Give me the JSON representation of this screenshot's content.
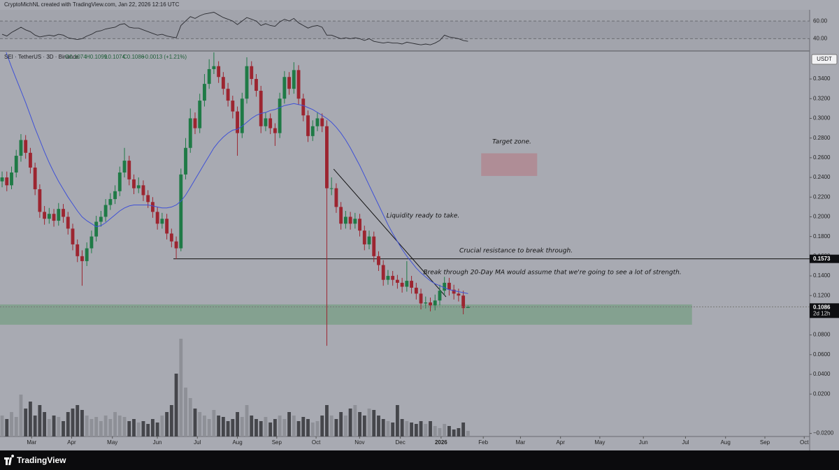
{
  "chart_data": {
    "type": "candlestick",
    "header": "CryptoMichNL created with TradingView.com, Jan 22, 2026 12:16 UTC",
    "legend": {
      "symbol": "SEI · TetherUS · 3D · Binance",
      "open": "O0.1074",
      "high": "H0.1099",
      "low": "L0.1074",
      "close": "C0.1086",
      "change": "+0.0013 (+1.21%)"
    },
    "currency": "USDT",
    "footer": "TradingView",
    "colors": {
      "up": "#1f7a46",
      "down": "#9c2530",
      "ma": "#3f51d6",
      "volume_up": "#8e9097",
      "volume_down": "#45464b",
      "rsi": "#2a2b30"
    },
    "candles": [
      [
        0.236,
        0.246,
        0.23,
        0.24
      ],
      [
        0.24,
        0.246,
        0.226,
        0.232
      ],
      [
        0.232,
        0.251,
        0.228,
        0.245
      ],
      [
        0.245,
        0.268,
        0.24,
        0.262
      ],
      [
        0.262,
        0.284,
        0.256,
        0.278
      ],
      [
        0.278,
        0.283,
        0.259,
        0.265
      ],
      [
        0.265,
        0.27,
        0.244,
        0.25
      ],
      [
        0.25,
        0.255,
        0.222,
        0.228
      ],
      [
        0.228,
        0.233,
        0.199,
        0.205
      ],
      [
        0.205,
        0.211,
        0.192,
        0.198
      ],
      [
        0.198,
        0.209,
        0.193,
        0.203
      ],
      [
        0.203,
        0.208,
        0.19,
        0.196
      ],
      [
        0.196,
        0.214,
        0.191,
        0.208
      ],
      [
        0.208,
        0.213,
        0.194,
        0.2
      ],
      [
        0.2,
        0.205,
        0.182,
        0.188
      ],
      [
        0.188,
        0.193,
        0.166,
        0.172
      ],
      [
        0.172,
        0.177,
        0.154,
        0.16
      ],
      [
        0.16,
        0.166,
        0.13,
        0.155
      ],
      [
        0.155,
        0.174,
        0.15,
        0.168
      ],
      [
        0.168,
        0.186,
        0.163,
        0.18
      ],
      [
        0.18,
        0.201,
        0.175,
        0.195
      ],
      [
        0.195,
        0.206,
        0.19,
        0.2
      ],
      [
        0.2,
        0.218,
        0.195,
        0.212
      ],
      [
        0.212,
        0.224,
        0.207,
        0.218
      ],
      [
        0.218,
        0.232,
        0.213,
        0.226
      ],
      [
        0.226,
        0.251,
        0.221,
        0.245
      ],
      [
        0.245,
        0.27,
        0.24,
        0.257
      ],
      [
        0.257,
        0.262,
        0.232,
        0.238
      ],
      [
        0.238,
        0.243,
        0.223,
        0.229
      ],
      [
        0.229,
        0.24,
        0.224,
        0.232
      ],
      [
        0.232,
        0.237,
        0.216,
        0.222
      ],
      [
        0.222,
        0.227,
        0.209,
        0.215
      ],
      [
        0.215,
        0.22,
        0.199,
        0.205
      ],
      [
        0.205,
        0.21,
        0.187,
        0.193
      ],
      [
        0.193,
        0.204,
        0.188,
        0.198
      ],
      [
        0.198,
        0.203,
        0.177,
        0.183
      ],
      [
        0.183,
        0.188,
        0.169,
        0.175
      ],
      [
        0.175,
        0.18,
        0.157,
        0.168
      ],
      [
        0.168,
        0.249,
        0.165,
        0.243
      ],
      [
        0.243,
        0.28,
        0.238,
        0.27
      ],
      [
        0.27,
        0.31,
        0.265,
        0.3
      ],
      [
        0.3,
        0.306,
        0.284,
        0.29
      ],
      [
        0.29,
        0.325,
        0.285,
        0.318
      ],
      [
        0.318,
        0.345,
        0.312,
        0.335
      ],
      [
        0.335,
        0.36,
        0.33,
        0.35
      ],
      [
        0.35,
        0.367,
        0.345,
        0.353
      ],
      [
        0.353,
        0.358,
        0.336,
        0.342
      ],
      [
        0.342,
        0.347,
        0.324,
        0.33
      ],
      [
        0.33,
        0.336,
        0.312,
        0.318
      ],
      [
        0.318,
        0.323,
        0.3,
        0.307
      ],
      [
        0.307,
        0.312,
        0.262,
        0.285
      ],
      [
        0.285,
        0.326,
        0.28,
        0.32
      ],
      [
        0.32,
        0.362,
        0.315,
        0.353
      ],
      [
        0.353,
        0.358,
        0.334,
        0.34
      ],
      [
        0.34,
        0.345,
        0.322,
        0.328
      ],
      [
        0.328,
        0.333,
        0.285,
        0.292
      ],
      [
        0.292,
        0.306,
        0.287,
        0.3
      ],
      [
        0.3,
        0.305,
        0.284,
        0.29
      ],
      [
        0.29,
        0.295,
        0.272,
        0.285
      ],
      [
        0.285,
        0.326,
        0.28,
        0.32
      ],
      [
        0.32,
        0.348,
        0.315,
        0.342
      ],
      [
        0.342,
        0.347,
        0.324,
        0.33
      ],
      [
        0.33,
        0.357,
        0.325,
        0.349
      ],
      [
        0.349,
        0.354,
        0.314,
        0.32
      ],
      [
        0.32,
        0.325,
        0.297,
        0.303
      ],
      [
        0.303,
        0.308,
        0.276,
        0.282
      ],
      [
        0.282,
        0.298,
        0.277,
        0.292
      ],
      [
        0.292,
        0.306,
        0.287,
        0.3
      ],
      [
        0.3,
        0.305,
        0.286,
        0.292
      ],
      [
        0.292,
        0.298,
        0.069,
        0.229
      ],
      [
        0.229,
        0.24,
        0.222,
        0.229
      ],
      [
        0.229,
        0.234,
        0.204,
        0.21
      ],
      [
        0.21,
        0.215,
        0.187,
        0.193
      ],
      [
        0.193,
        0.206,
        0.188,
        0.2
      ],
      [
        0.2,
        0.205,
        0.187,
        0.193
      ],
      [
        0.193,
        0.204,
        0.188,
        0.198
      ],
      [
        0.198,
        0.203,
        0.18,
        0.186
      ],
      [
        0.186,
        0.191,
        0.166,
        0.172
      ],
      [
        0.172,
        0.186,
        0.167,
        0.18
      ],
      [
        0.18,
        0.185,
        0.154,
        0.16
      ],
      [
        0.16,
        0.165,
        0.145,
        0.151
      ],
      [
        0.151,
        0.156,
        0.13,
        0.136
      ],
      [
        0.136,
        0.146,
        0.131,
        0.14
      ],
      [
        0.14,
        0.145,
        0.13,
        0.136
      ],
      [
        0.136,
        0.141,
        0.127,
        0.133
      ],
      [
        0.133,
        0.138,
        0.123,
        0.129
      ],
      [
        0.129,
        0.155,
        0.124,
        0.135
      ],
      [
        0.135,
        0.14,
        0.122,
        0.128
      ],
      [
        0.128,
        0.133,
        0.116,
        0.122
      ],
      [
        0.122,
        0.127,
        0.106,
        0.112
      ],
      [
        0.112,
        0.119,
        0.107,
        0.113
      ],
      [
        0.113,
        0.118,
        0.104,
        0.11
      ],
      [
        0.11,
        0.121,
        0.105,
        0.115
      ],
      [
        0.115,
        0.131,
        0.11,
        0.125
      ],
      [
        0.125,
        0.139,
        0.12,
        0.133
      ],
      [
        0.133,
        0.138,
        0.12,
        0.126
      ],
      [
        0.126,
        0.131,
        0.116,
        0.122
      ],
      [
        0.122,
        0.127,
        0.114,
        0.12
      ],
      [
        0.12,
        0.125,
        0.101,
        0.1073
      ],
      [
        0.1074,
        0.1099,
        0.1074,
        0.1086
      ]
    ],
    "ma": {
      "values": [
        0.38,
        0.365,
        0.352,
        0.34,
        0.328,
        0.316,
        0.303,
        0.29,
        0.278,
        0.266,
        0.255,
        0.245,
        0.236,
        0.228,
        0.22,
        0.213,
        0.206,
        0.2,
        0.196,
        0.193,
        0.19,
        0.191,
        0.194,
        0.198,
        0.202,
        0.206,
        0.209,
        0.211,
        0.212,
        0.212,
        0.212,
        0.212,
        0.211,
        0.21,
        0.209,
        0.209,
        0.21,
        0.212,
        0.216,
        0.222,
        0.23,
        0.238,
        0.246,
        0.254,
        0.262,
        0.27,
        0.276,
        0.281,
        0.285,
        0.288,
        0.289,
        0.292,
        0.296,
        0.3,
        0.303,
        0.305,
        0.306,
        0.308,
        0.309,
        0.311,
        0.313,
        0.314,
        0.315,
        0.314,
        0.313,
        0.311,
        0.309,
        0.306,
        0.303,
        0.3,
        0.296,
        0.291,
        0.285,
        0.278,
        0.27,
        0.261,
        0.252,
        0.242,
        0.232,
        0.222,
        0.212,
        0.202,
        0.192,
        0.183,
        0.175,
        0.167,
        0.16,
        0.154,
        0.148,
        0.143,
        0.139,
        0.135,
        0.132,
        0.13,
        0.128,
        0.126,
        0.125,
        0.124,
        0.123,
        0.122
      ]
    },
    "volume": [
      30,
      25,
      35,
      28,
      60,
      40,
      50,
      30,
      45,
      35,
      25,
      30,
      28,
      22,
      35,
      40,
      45,
      38,
      30,
      25,
      28,
      22,
      30,
      25,
      35,
      30,
      28,
      22,
      25,
      20,
      22,
      18,
      25,
      20,
      30,
      35,
      45,
      90,
      140,
      70,
      55,
      40,
      35,
      30,
      25,
      38,
      30,
      28,
      22,
      25,
      35,
      28,
      45,
      30,
      25,
      22,
      28,
      20,
      25,
      30,
      25,
      35,
      30,
      22,
      28,
      25,
      20,
      22,
      30,
      45,
      30,
      25,
      35,
      30,
      40,
      45,
      35,
      30,
      40,
      38,
      30,
      25,
      22,
      20,
      45,
      25,
      22,
      20,
      18,
      22,
      18,
      22,
      15,
      12,
      18,
      15,
      10,
      12,
      20,
      8
    ],
    "rsi": {
      "values": [
        45,
        43,
        47,
        50,
        53,
        50,
        48,
        44,
        42,
        43,
        44,
        43,
        45,
        44,
        41,
        40,
        39,
        40,
        43,
        45,
        48,
        49,
        51,
        52,
        53,
        56,
        57,
        53,
        52,
        52,
        50,
        48,
        46,
        44,
        45,
        43,
        42,
        41,
        55,
        60,
        65,
        63,
        66,
        68,
        69,
        70,
        67,
        64,
        62,
        60,
        56,
        60,
        64,
        62,
        60,
        55,
        57,
        55,
        54,
        59,
        62,
        60,
        63,
        58,
        55,
        52,
        54,
        55,
        53,
        44,
        44,
        42,
        40,
        41,
        40,
        41,
        40,
        38,
        40,
        37,
        36,
        35,
        36,
        35,
        35,
        34,
        36,
        35,
        34,
        33,
        34,
        33,
        35,
        38,
        44,
        42,
        41,
        40,
        38,
        37
      ],
      "ylim": [
        30,
        72
      ],
      "yticks": [
        {
          "value": 40,
          "label": "40.00"
        },
        {
          "value": 60,
          "label": "60.00"
        }
      ]
    },
    "xlim": [
      -0.45,
      171.6
    ],
    "xticks": [
      {
        "value": 6.27,
        "label": "Mar"
      },
      {
        "value": 14.78,
        "label": "Apr"
      },
      {
        "value": 23.43,
        "label": "May"
      },
      {
        "value": 32.99,
        "label": "Jun"
      },
      {
        "value": 41.49,
        "label": "Jul"
      },
      {
        "value": 50,
        "label": "Aug"
      },
      {
        "value": 58.36,
        "label": "Sep"
      },
      {
        "value": 66.72,
        "label": "Oct"
      },
      {
        "value": 75.97,
        "label": "Nov"
      },
      {
        "value": 84.63,
        "label": "Dec"
      },
      {
        "value": 93.28,
        "label": "2026"
      },
      {
        "value": 102.24,
        "label": "Feb"
      },
      {
        "value": 110.15,
        "label": "Mar"
      },
      {
        "value": 118.66,
        "label": "Apr"
      },
      {
        "value": 127.01,
        "label": "May"
      },
      {
        "value": 136.27,
        "label": "Jun"
      },
      {
        "value": 145.22,
        "label": "Jul"
      },
      {
        "value": 153.73,
        "label": "Aug"
      },
      {
        "value": 162.09,
        "label": "Sep"
      },
      {
        "value": 170.45,
        "label": "Oct"
      }
    ],
    "ylim": [
      -0.0231,
      0.367
    ],
    "yticks": [
      {
        "value": 0.34,
        "label": "0.3400"
      },
      {
        "value": 0.32,
        "label": "0.3200"
      },
      {
        "value": 0.3,
        "label": "0.3000"
      },
      {
        "value": 0.28,
        "label": "0.2800"
      },
      {
        "value": 0.26,
        "label": "0.2600"
      },
      {
        "value": 0.24,
        "label": "0.2400"
      },
      {
        "value": 0.22,
        "label": "0.2200"
      },
      {
        "value": 0.2,
        "label": "0.2000"
      },
      {
        "value": 0.18,
        "label": "0.1800"
      },
      {
        "value": 0.16,
        "label": "0.1600"
      },
      {
        "value": 0.14,
        "label": "0.1400"
      },
      {
        "value": 0.12,
        "label": "0.1200"
      },
      {
        "value": 0.08,
        "label": "0.0800"
      },
      {
        "value": 0.06,
        "label": "0.0600"
      },
      {
        "value": 0.04,
        "label": "0.0400"
      },
      {
        "value": 0.02,
        "label": "0.0200"
      },
      {
        "value": -0.02,
        "label": "−0.0200"
      }
    ],
    "resistance": {
      "value": 0.1573,
      "from": 36.4
    },
    "last_price": 0.1086,
    "countdown": "2d 12h",
    "zones": [
      {
        "top": 0.111,
        "bottom": 0.0904,
        "from": -0.45,
        "to": 146.6,
        "color": "#7ea08a"
      },
      {
        "top": 0.2645,
        "bottom": 0.2415,
        "from": 101.8,
        "to": 113.7,
        "color": "#b08890"
      }
    ],
    "trendline": {
      "from": [
        70.45,
        0.2485
      ],
      "to": [
        94.33,
        0.1187
      ]
    },
    "annotations": {
      "target": "Target zone.",
      "liquidity": "Liquidity ready to take.",
      "resistance": "Crucial resistance to break through.",
      "breakthrough": "Break through 20-Day MA would assume that we're going to see a lot of strength."
    }
  }
}
